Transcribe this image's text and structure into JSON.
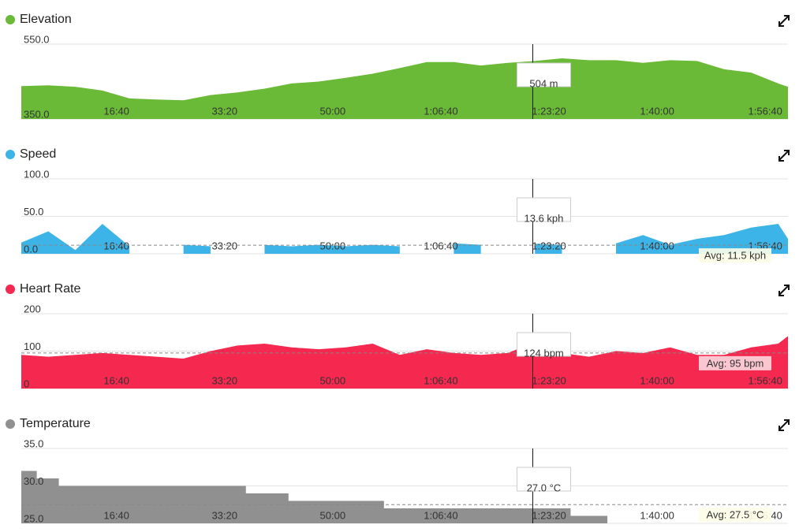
{
  "chart_data": [
    {
      "type": "area",
      "title": "Elevation",
      "color": "#6aba37",
      "x": [
        120,
        370,
        620,
        870,
        1120,
        1370,
        1620,
        1870,
        2120,
        2370,
        2620,
        2870,
        3120,
        3370,
        3620,
        3870,
        4120,
        4370,
        4620,
        4870,
        5120,
        5370,
        5620,
        5870,
        6120,
        6370,
        6620,
        6870,
        7120,
        7210
      ],
      "series": [
        {
          "name": "Elevation",
          "color": "#6aba37",
          "values": [
            438,
            440,
            436,
            426,
            405,
            402,
            400,
            414,
            421,
            431,
            445,
            450,
            460,
            471,
            486,
            502,
            502,
            493,
            500,
            505,
            512,
            507,
            507,
            500,
            507,
            505,
            483,
            474,
            445,
            436
          ]
        }
      ],
      "xlim": [
        120,
        7210
      ],
      "xticks": [
        {
          "value": 1000,
          "label": "16:40"
        },
        {
          "value": 2000,
          "label": "33:20"
        },
        {
          "value": 3000,
          "label": "50:00"
        },
        {
          "value": 4000,
          "label": "1:06:40"
        },
        {
          "value": 5000,
          "label": "1:23:20"
        },
        {
          "value": 6000,
          "label": "1:40:00"
        },
        {
          "value": 7000,
          "label": "1:56:40"
        }
      ],
      "ylim": [
        350,
        550
      ],
      "yticks": [
        {
          "value": 350,
          "label": "350.0"
        },
        {
          "value": 550,
          "label": "550.0"
        }
      ],
      "grid": true,
      "cursor": {
        "x": 4850,
        "value": 504,
        "label": "504 m"
      }
    },
    {
      "type": "area",
      "title": "Speed",
      "color": "#3db4e8",
      "x": [
        120,
        370,
        620,
        870,
        1120,
        1370,
        1620,
        1870,
        2120,
        2370,
        2620,
        2870,
        3120,
        3370,
        3620,
        3870,
        4120,
        4370,
        4620,
        4870,
        5120,
        5370,
        5620,
        5870,
        6120,
        6370,
        6620,
        6870,
        7120,
        7210
      ],
      "series": [
        {
          "name": "Speed",
          "color": "#3db4e8",
          "values": [
            15,
            30,
            5,
            40,
            10,
            null,
            12,
            10,
            null,
            12,
            10,
            12,
            10,
            12,
            10,
            null,
            14,
            12,
            null,
            13.6,
            12,
            null,
            14,
            25,
            12,
            20,
            25,
            35,
            40,
            20
          ]
        }
      ],
      "xlim": [
        120,
        7210
      ],
      "xticks": [
        {
          "value": 1000,
          "label": "16:40"
        },
        {
          "value": 2000,
          "label": "33:20"
        },
        {
          "value": 3000,
          "label": "50:00"
        },
        {
          "value": 4000,
          "label": "1:06:40"
        },
        {
          "value": 5000,
          "label": "1:23:20"
        },
        {
          "value": 6000,
          "label": "1:40:00"
        },
        {
          "value": 7000,
          "label": "1:56:40"
        }
      ],
      "ylim": [
        0,
        100
      ],
      "yticks": [
        {
          "value": 0,
          "label": "0.0"
        },
        {
          "value": 50,
          "label": "50.0"
        },
        {
          "value": 100,
          "label": "100.0"
        }
      ],
      "grid": true,
      "average": {
        "value": 11.5,
        "label": "Avg: 11.5 kph"
      },
      "cursor": {
        "x": 4850,
        "value": 13.6,
        "label": "13.6 kph"
      }
    },
    {
      "type": "area",
      "title": "Heart Rate",
      "color": "#f5284f",
      "x": [
        120,
        370,
        620,
        870,
        1120,
        1370,
        1620,
        1870,
        2120,
        2370,
        2620,
        2870,
        3120,
        3370,
        3620,
        3870,
        4120,
        4370,
        4620,
        4870,
        5120,
        5370,
        5620,
        5870,
        6120,
        6370,
        6620,
        6870,
        7120,
        7210
      ],
      "series": [
        {
          "name": "Heart Rate",
          "color": "#f5284f",
          "values": [
            90,
            85,
            90,
            95,
            90,
            85,
            80,
            100,
            115,
            120,
            110,
            105,
            110,
            120,
            90,
            105,
            95,
            90,
            95,
            124,
            95,
            85,
            100,
            95,
            110,
            90,
            90,
            110,
            120,
            140
          ]
        }
      ],
      "xlim": [
        120,
        7210
      ],
      "xticks": [
        {
          "value": 1000,
          "label": "16:40"
        },
        {
          "value": 2000,
          "label": "33:20"
        },
        {
          "value": 3000,
          "label": "50:00"
        },
        {
          "value": 4000,
          "label": "1:06:40"
        },
        {
          "value": 5000,
          "label": "1:23:20"
        },
        {
          "value": 6000,
          "label": "1:40:00"
        },
        {
          "value": 7000,
          "label": "1:56:40"
        }
      ],
      "ylim": [
        0,
        200
      ],
      "yticks": [
        0,
        100,
        200
      ],
      "grid": true,
      "average": {
        "value": 95,
        "label": "Avg: 95 bpm"
      },
      "cursor": {
        "x": 4850,
        "value": 124,
        "label": "124 bpm"
      }
    },
    {
      "type": "step",
      "title": "Temperature",
      "color": "#909090",
      "x": [
        120,
        263,
        467,
        2197,
        2591,
        3474,
        5200,
        5540,
        7210
      ],
      "series": [
        {
          "name": "Temperature",
          "color": "#909090",
          "values": [
            32,
            31,
            30,
            29,
            28,
            27,
            26,
            25,
            25
          ]
        }
      ],
      "xlim": [
        120,
        7210
      ],
      "xticks": [
        {
          "value": 1000,
          "label": "16:40"
        },
        {
          "value": 2000,
          "label": "33:20"
        },
        {
          "value": 3000,
          "label": "50:00"
        },
        {
          "value": 4000,
          "label": "1:06:40"
        },
        {
          "value": 5000,
          "label": "1:23:20"
        },
        {
          "value": 6000,
          "label": "1:40:00"
        },
        {
          "value": 7000,
          "label": "1:56:40"
        }
      ],
      "ylim": [
        25,
        35
      ],
      "yticks": [
        {
          "value": 25,
          "label": "25.0"
        },
        {
          "value": 30,
          "label": "30.0"
        },
        {
          "value": 35,
          "label": "35.0"
        }
      ],
      "grid": true,
      "average": {
        "value": 27.5,
        "label": "Avg: 27.5 °C"
      },
      "cursor": {
        "x": 4850,
        "value": 27,
        "label": "27.0 °C"
      }
    }
  ]
}
